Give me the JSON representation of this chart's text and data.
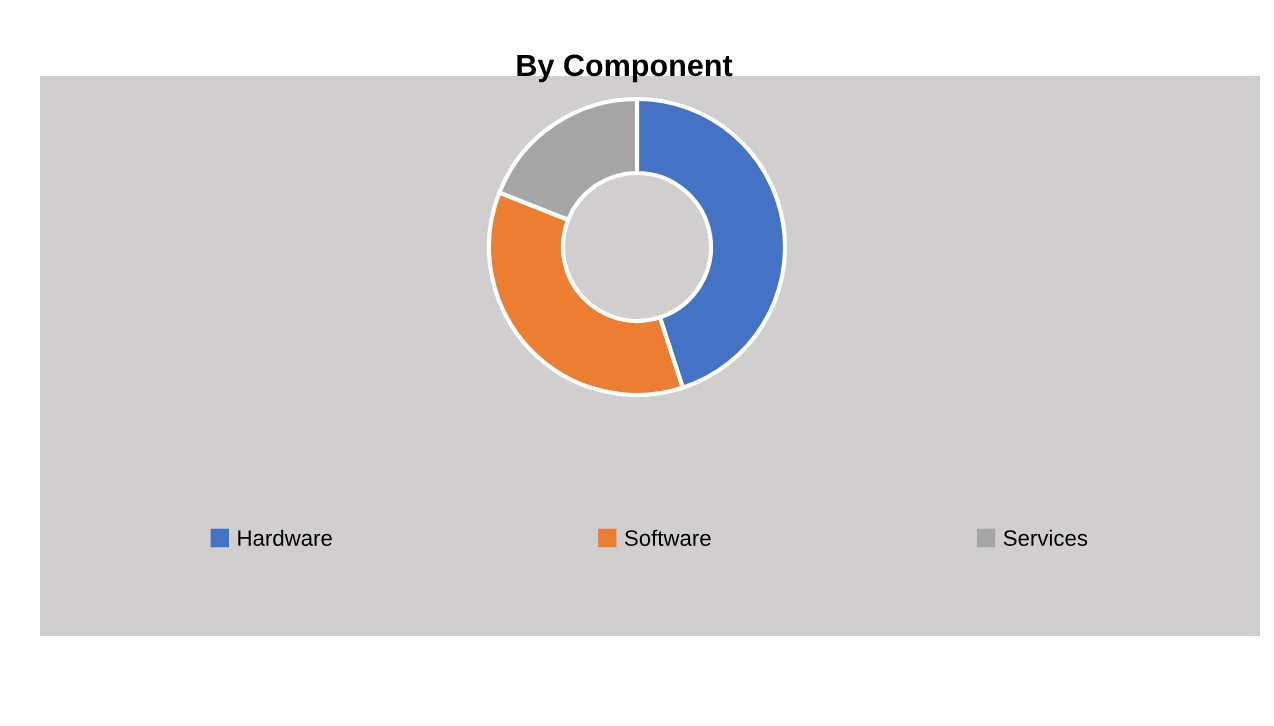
{
  "chart_data": {
    "type": "donut",
    "title": "By Component",
    "categories": [
      "Hardware",
      "Software",
      "Services"
    ],
    "values": [
      45,
      36,
      19
    ],
    "colors": [
      "#4472c4",
      "#ed7d31",
      "#a5a5a5"
    ],
    "legend": "bottom"
  }
}
